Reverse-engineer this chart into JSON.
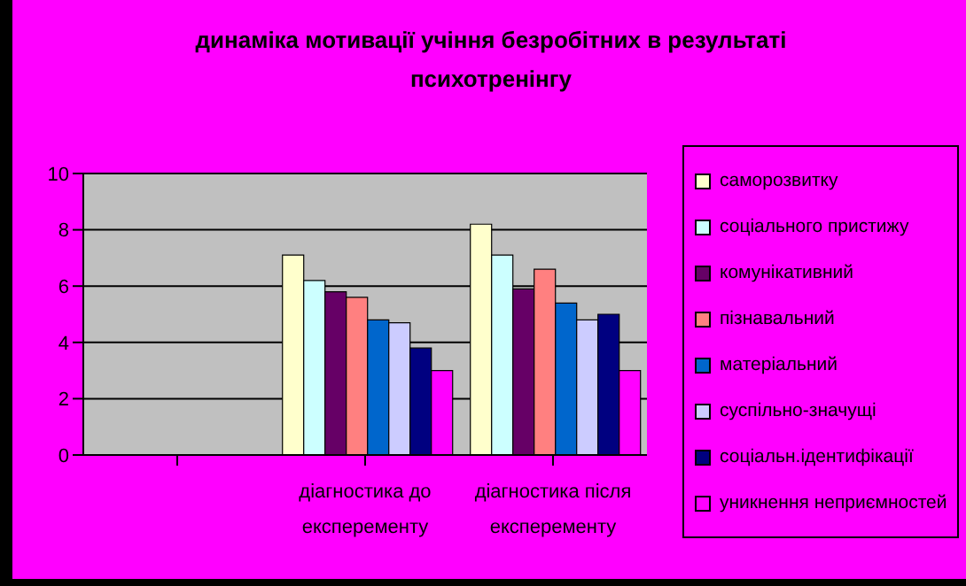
{
  "chart_data": {
    "type": "bar",
    "title": "динаміка мотивації учіння безробітних в результаті психотренінгу",
    "categories": [
      null,
      "діагностика до експеременту",
      "діагностика після експеременту"
    ],
    "series": [
      {
        "name": "саморозвитку",
        "color": "#ffffcc",
        "values": [
          null,
          7.1,
          8.2
        ]
      },
      {
        "name": "соціального пристижу",
        "color": "#ccffff",
        "values": [
          null,
          6.2,
          7.1
        ]
      },
      {
        "name": "комунікативний",
        "color": "#660066",
        "values": [
          null,
          5.8,
          5.9
        ]
      },
      {
        "name": "пізнавальний",
        "color": "#ff8080",
        "values": [
          null,
          5.6,
          6.6
        ]
      },
      {
        "name": "матеріальний",
        "color": "#0066cc",
        "values": [
          null,
          4.8,
          5.4
        ]
      },
      {
        "name": "суспільно-значущі",
        "color": "#ccccff",
        "values": [
          null,
          4.7,
          4.8
        ]
      },
      {
        "name": "соціальн.ідентифікації",
        "color": "#000080",
        "values": [
          null,
          3.8,
          5.0
        ]
      },
      {
        "name": "уникнення неприємностей",
        "color": "#ff00ff",
        "values": [
          null,
          3.0,
          3.0
        ]
      }
    ],
    "ylim": [
      0,
      10
    ],
    "yticks": [
      0,
      2,
      4,
      6,
      8,
      10
    ],
    "grid": "y",
    "legend": "right"
  }
}
